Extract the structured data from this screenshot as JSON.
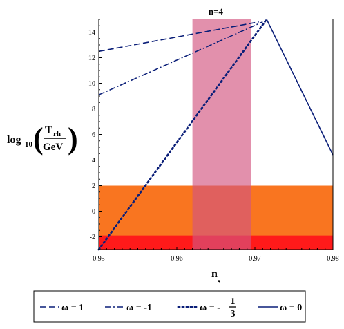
{
  "chart_data": {
    "type": "line",
    "title": "n=4",
    "xlabel": {
      "main": "n",
      "sub": "s"
    },
    "ylabel": {
      "prefix": "log",
      "sub": "10",
      "numerator": "T",
      "numerator_sub": "rh",
      "denominator": "GeV"
    },
    "xlim": [
      0.95,
      0.98
    ],
    "ylim": [
      -3,
      15
    ],
    "x_ticks": [
      0.95,
      0.96,
      0.97,
      0.98
    ],
    "x_tick_labels": [
      "0.95",
      "0.96",
      "0.97",
      "0.98"
    ],
    "y_ticks": [
      -2,
      0,
      2,
      4,
      6,
      8,
      10,
      12,
      14
    ],
    "y_tick_labels": [
      "-2",
      "0",
      "2",
      "4",
      "6",
      "8",
      "10",
      "12",
      "14"
    ],
    "grid": false,
    "bands": [
      {
        "orientation": "horizontal",
        "from": -3,
        "to": 2,
        "color": "#f97520"
      },
      {
        "orientation": "horizontal",
        "from": -3,
        "to": -1.9,
        "color": "#ff1a1a"
      },
      {
        "orientation": "vertical",
        "from": 0.962,
        "to": 0.9695,
        "color": "#d2547f",
        "opacity": 0.65
      }
    ],
    "series": [
      {
        "legend_label": "ω = 1",
        "style": "dash",
        "color": "#0a1e78",
        "x": [
          0.95,
          0.9705
        ],
        "y": [
          12.5,
          14.8
        ]
      },
      {
        "legend_label": "ω = -1",
        "style": "dashdot",
        "color": "#0a1e78",
        "x": [
          0.95,
          0.971
        ],
        "y": [
          9.1,
          14.8
        ]
      },
      {
        "legend_label": "ω = -",
        "legend_fraction": {
          "numerator": "1",
          "denominator": "3"
        },
        "style": "dot",
        "color": "#0a1e78",
        "x": [
          0.95,
          0.9715
        ],
        "y": [
          -3.0,
          15.0
        ]
      },
      {
        "legend_label": "ω = 0",
        "style": "solid",
        "color": "#0a1e78",
        "x": [
          0.9715,
          0.98
        ],
        "y": [
          15.0,
          4.4
        ]
      }
    ],
    "legend_position": "bottom"
  }
}
